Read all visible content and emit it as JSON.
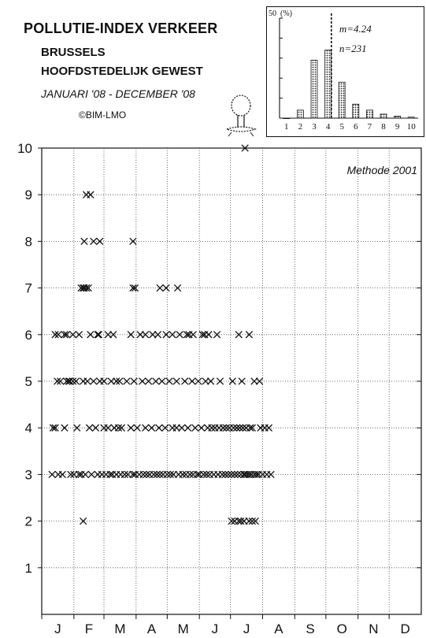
{
  "header": {
    "title": "POLLUTIE-INDEX VERKEER",
    "region_line1": "BRUSSELS",
    "region_line2": "HOOFDSTEDELIJK GEWEST",
    "period": "JANUARI '08 - DECEMBER '08",
    "credit": "©BIM-LMO"
  },
  "chart_data": [
    {
      "type": "scatter",
      "title": "",
      "annotation": "Methode 2001",
      "xlabel": "",
      "ylabel": "",
      "x_tick_labels": [
        "J",
        "F",
        "M",
        "A",
        "M",
        "J",
        "J",
        "A",
        "S",
        "O",
        "N",
        "D"
      ],
      "y_tick_labels": [
        "1",
        "2",
        "3",
        "4",
        "5",
        "6",
        "7",
        "8",
        "9",
        "10"
      ],
      "xlim": [
        0,
        366
      ],
      "ylim": [
        0,
        10
      ],
      "grid": true,
      "marker": "x",
      "x_unit": "day of year 2008",
      "series": [
        {
          "values": [
            [
              10,
              3
            ],
            [
              11,
              4
            ],
            [
              13,
              4
            ],
            [
              16,
              3
            ],
            [
              15,
              5
            ],
            [
              18,
              5
            ],
            [
              20,
              3
            ],
            [
              22,
              4
            ],
            [
              24,
              5
            ],
            [
              26,
              5
            ],
            [
              28,
              3
            ],
            [
              30,
              5
            ],
            [
              30,
              6
            ],
            [
              27,
              5
            ],
            [
              31,
              3
            ],
            [
              33,
              5
            ],
            [
              34,
              4
            ],
            [
              36,
              3
            ],
            [
              36,
              6
            ],
            [
              38,
              3
            ],
            [
              40,
              5
            ],
            [
              40,
              2
            ],
            [
              42,
              3
            ],
            [
              44,
              5
            ],
            [
              46,
              4
            ],
            [
              47,
              6
            ],
            [
              48,
              3
            ],
            [
              50,
              5
            ],
            [
              52,
              4
            ],
            [
              54,
              3
            ],
            [
              54,
              6
            ],
            [
              56,
              5
            ],
            [
              58,
              3
            ],
            [
              60,
              5
            ],
            [
              60,
              4
            ],
            [
              62,
              3
            ],
            [
              64,
              4
            ],
            [
              64,
              6
            ],
            [
              66,
              3
            ],
            [
              67,
              5
            ],
            [
              68,
              3
            ],
            [
              70,
              4
            ],
            [
              69,
              6
            ],
            [
              72,
              5
            ],
            [
              72,
              3
            ],
            [
              74,
              4
            ],
            [
              76,
              3
            ],
            [
              75,
              5
            ],
            [
              77,
              4
            ],
            [
              80,
              3
            ],
            [
              82,
              5
            ],
            [
              83,
              3
            ],
            [
              86,
              4
            ],
            [
              88,
              3
            ],
            [
              89,
              5
            ],
            [
              90,
              3
            ],
            [
              92,
              4
            ],
            [
              94,
              3
            ],
            [
              95,
              6
            ],
            [
              97,
              5
            ],
            [
              98,
              3
            ],
            [
              100,
              4
            ],
            [
              101,
              3
            ],
            [
              103,
              5
            ],
            [
              104,
              3
            ],
            [
              106,
              4
            ],
            [
              107,
              6
            ],
            [
              108,
              3
            ],
            [
              110,
              5
            ],
            [
              111,
              3
            ],
            [
              113,
              4
            ],
            [
              114,
              3
            ],
            [
              116,
              5
            ],
            [
              117,
              3
            ],
            [
              119,
              4
            ],
            [
              120,
              6
            ],
            [
              121,
              3
            ],
            [
              123,
              5
            ],
            [
              124,
              3
            ],
            [
              126,
              4
            ],
            [
              127,
              3
            ],
            [
              130,
              5
            ],
            [
              130,
              4
            ],
            [
              132,
              3
            ],
            [
              133,
              6
            ],
            [
              135,
              4
            ],
            [
              136,
              3
            ],
            [
              138,
              5
            ],
            [
              139,
              3
            ],
            [
              141,
              4
            ],
            [
              142,
              6
            ],
            [
              143,
              3
            ],
            [
              145,
              5
            ],
            [
              146,
              3
            ],
            [
              148,
              4
            ],
            [
              150,
              3
            ],
            [
              151,
              5
            ],
            [
              152,
              3
            ],
            [
              154,
              4
            ],
            [
              155,
              6
            ],
            [
              156,
              3
            ],
            [
              158,
              5
            ],
            [
              159,
              3
            ],
            [
              160,
              4
            ],
            [
              162,
              3
            ],
            [
              163,
              5
            ],
            [
              164,
              4
            ],
            [
              166,
              3
            ],
            [
              167,
              4
            ],
            [
              169,
              6
            ],
            [
              170,
              3
            ],
            [
              171,
              4
            ],
            [
              172,
              5
            ],
            [
              174,
              3
            ],
            [
              175,
              4
            ],
            [
              177,
              3
            ],
            [
              178,
              4
            ],
            [
              180,
              3
            ],
            [
              181,
              4
            ],
            [
              183,
              3
            ],
            [
              184,
              5
            ],
            [
              185,
              4
            ],
            [
              186,
              3
            ],
            [
              188,
              4
            ],
            [
              189,
              3
            ],
            [
              190,
              6
            ],
            [
              191,
              4
            ],
            [
              192,
              3
            ],
            [
              193,
              5
            ],
            [
              194,
              4
            ],
            [
              195,
              3
            ],
            [
              196,
              3
            ],
            [
              197,
              4
            ],
            [
              198,
              3
            ],
            [
              200,
              3
            ],
            [
              201,
              4
            ],
            [
              202,
              3
            ],
            [
              203,
              4
            ],
            [
              205,
              3
            ],
            [
              207,
              3
            ],
            [
              209,
              3
            ],
            [
              211,
              4
            ],
            [
              213,
              3
            ],
            [
              215,
              4
            ],
            [
              217,
              3
            ],
            [
              219,
              4
            ],
            [
              221,
              3
            ],
            [
              183,
              2
            ],
            [
              186,
              2
            ],
            [
              190,
              2
            ],
            [
              192,
              2
            ],
            [
              195,
              2
            ],
            [
              200,
              2
            ],
            [
              203,
              2
            ],
            [
              206,
              2
            ],
            [
              13,
              6
            ],
            [
              16,
              6
            ],
            [
              22,
              6
            ],
            [
              24,
              6
            ],
            [
              38,
              7
            ],
            [
              40,
              7
            ],
            [
              41,
              7
            ],
            [
              43,
              7
            ],
            [
              45,
              7
            ],
            [
              43,
              9
            ],
            [
              47,
              9
            ],
            [
              41,
              8
            ],
            [
              56,
              8
            ],
            [
              50,
              8
            ],
            [
              55,
              6
            ],
            [
              86,
              6
            ],
            [
              88,
              7
            ],
            [
              90,
              7
            ],
            [
              88,
              8
            ],
            [
              100,
              6
            ],
            [
              112,
              6
            ],
            [
              114,
              7
            ],
            [
              120,
              7
            ],
            [
              131,
              7
            ],
            [
              200,
              6
            ],
            [
              205,
              5
            ],
            [
              210,
              5
            ],
            [
              126,
              6
            ],
            [
              140,
              6
            ],
            [
              146,
              6
            ],
            [
              157,
              6
            ],
            [
              161,
              6
            ],
            [
              196,
              10
            ]
          ]
        }
      ]
    },
    {
      "type": "bar",
      "title": "",
      "ylabel": "(%)",
      "y_tick_label": "50",
      "ylim": [
        0,
        50
      ],
      "categories": [
        "1",
        "2",
        "3",
        "4",
        "5",
        "6",
        "7",
        "8",
        "9",
        "10"
      ],
      "values": [
        0,
        4,
        29,
        34,
        18,
        7,
        4,
        2,
        1,
        0.5
      ],
      "mean_line": 4.24,
      "annotations": [
        "m=4.24",
        "n=231"
      ]
    }
  ]
}
